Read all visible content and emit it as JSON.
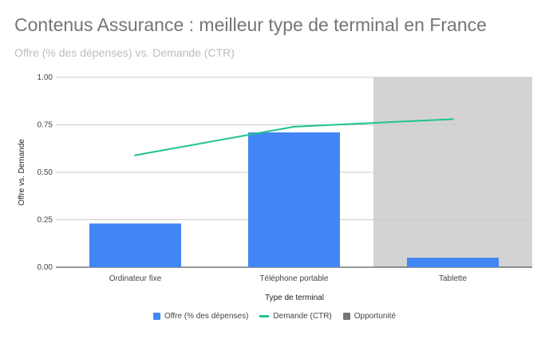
{
  "chart_data": {
    "type": "bar",
    "title": "Contenus Assurance : meilleur type de terminal en France",
    "subtitle": "Offre (% des dépenses) vs. Demande (CTR)",
    "xlabel": "Type de terminal",
    "ylabel": "Offre vs. Demande",
    "ylim": [
      0,
      1
    ],
    "yticks": [
      "0.00",
      "0.25",
      "0.50",
      "0.75",
      "1.00"
    ],
    "ytick_values": [
      0,
      0.25,
      0.5,
      0.75,
      1
    ],
    "categories": [
      "Ordinateur fixe",
      "Téléphone portable",
      "Tablette"
    ],
    "grid": true,
    "legend_position": "bottom",
    "series": [
      {
        "name": "Offre (% des dépenses)",
        "kind": "bar",
        "color": "#4285f4",
        "values": [
          0.23,
          0.71,
          0.05
        ]
      },
      {
        "name": "Demande (CTR)",
        "kind": "line",
        "color": "#1ec38f",
        "values": [
          0.59,
          0.74,
          0.78
        ]
      },
      {
        "name": "Opportunité",
        "kind": "highlight",
        "color": "#d3d3d3",
        "legend_color": "#757575",
        "values": [
          null,
          null,
          1
        ]
      }
    ]
  }
}
